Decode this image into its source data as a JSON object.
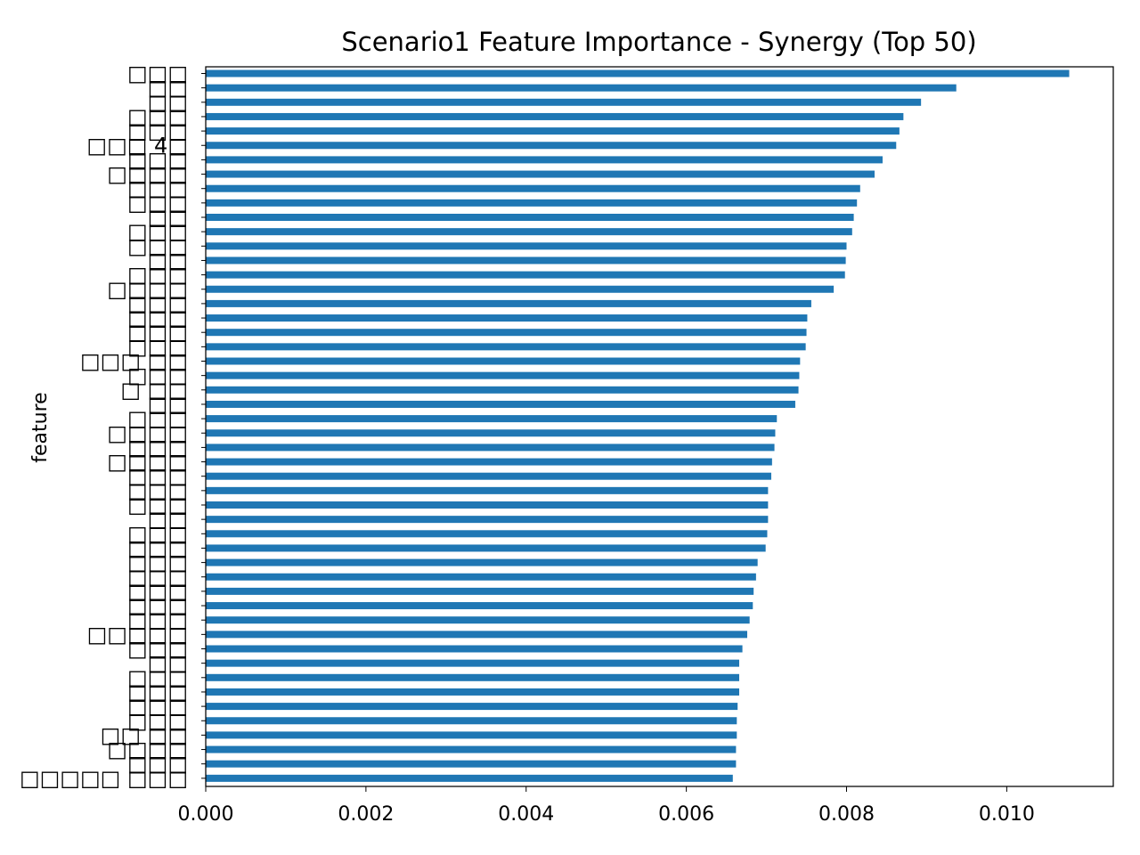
{
  "chart_data": {
    "type": "bar",
    "orientation": "horizontal",
    "title": "Scenario1 Feature Importance - Synergy (Top 50)",
    "xlabel": "",
    "ylabel": "feature",
    "xlim": [
      0.0,
      0.01133
    ],
    "xticks": [
      0.0,
      0.002,
      0.004,
      0.006,
      0.008,
      0.01
    ],
    "xtick_labels": [
      "0.000",
      "0.002",
      "0.004",
      "0.006",
      "0.008",
      "0.010"
    ],
    "grid": false,
    "bar_color": "#1f77b4",
    "categories": [
      "□□□",
      "□□",
      "□□",
      "□□□",
      "□□□",
      "□□□ 4□",
      "□□□",
      "□□□□",
      "□□□",
      "□□□",
      "□□",
      "□□□",
      "□□□",
      "□□",
      "□□□",
      "□□□□",
      "□□□",
      "□□□",
      "□□□",
      "□□□",
      "□□□ □□",
      "□□□",
      "□ □□",
      "□□",
      "□□□",
      "□□□□",
      "□□□",
      "□□□□",
      "□□□",
      "□□□",
      "□□□",
      "□□",
      "□□□",
      "□□□",
      "□□□",
      "□□□",
      "□□□",
      "□□□",
      "□□□",
      "□□□□□",
      "□□□",
      "□□",
      "□□□",
      "□□□",
      "□□□",
      "□□□",
      "□□ □□",
      "□□□□",
      "□□□",
      "□□□□□ □□□"
    ],
    "values": [
      0.01078,
      0.00937,
      0.00893,
      0.00871,
      0.00866,
      0.00862,
      0.00845,
      0.00835,
      0.00817,
      0.00813,
      0.00809,
      0.00807,
      0.008,
      0.00799,
      0.00798,
      0.00784,
      0.00756,
      0.00751,
      0.0075,
      0.00749,
      0.00742,
      0.00741,
      0.0074,
      0.00736,
      0.00713,
      0.00711,
      0.0071,
      0.00707,
      0.00706,
      0.00702,
      0.00702,
      0.00702,
      0.00701,
      0.00699,
      0.00689,
      0.00687,
      0.00684,
      0.00683,
      0.00679,
      0.00676,
      0.0067,
      0.00666,
      0.00666,
      0.00666,
      0.00664,
      0.00663,
      0.00663,
      0.00662,
      0.00662,
      0.00658
    ]
  }
}
